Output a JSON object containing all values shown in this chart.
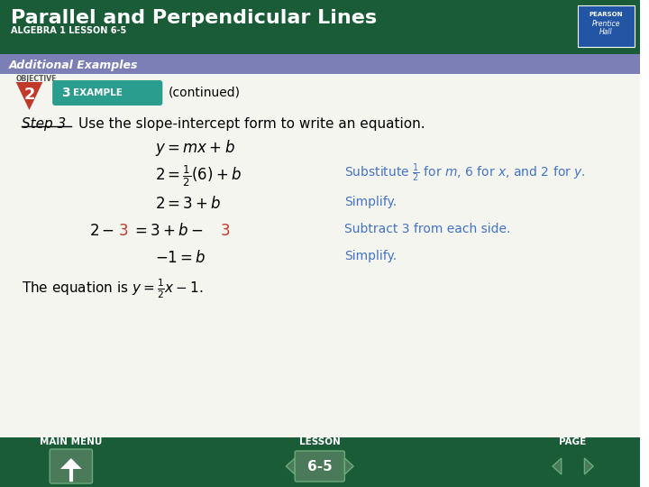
{
  "title": "Parallel and Perpendicular Lines",
  "subtitle": "ALGEBRA 1 LESSON 6-5",
  "additional_examples": "Additional Examples",
  "objective_num": "2",
  "example_num": "3",
  "continued": "(continued)",
  "bg_header_color": "#1a5c38",
  "bg_subheader_color": "#7b7fb5",
  "bg_body_color": "#ffffff",
  "bg_footer_color": "#1a5c38",
  "title_color": "#ffffff",
  "subtitle_color": "#ffffff",
  "additional_color": "#ffffff",
  "teal_color": "#2a9d8f",
  "example_label_bg": "#2a9d8f",
  "example_label_color": "#ffffff",
  "blue_text_color": "#4472c4",
  "red_text_color": "#c0392b",
  "black_text_color": "#000000",
  "body_bg": "#f5f5f0",
  "footer_page": "6-5",
  "nav_btn_color": "#4a7a5a"
}
